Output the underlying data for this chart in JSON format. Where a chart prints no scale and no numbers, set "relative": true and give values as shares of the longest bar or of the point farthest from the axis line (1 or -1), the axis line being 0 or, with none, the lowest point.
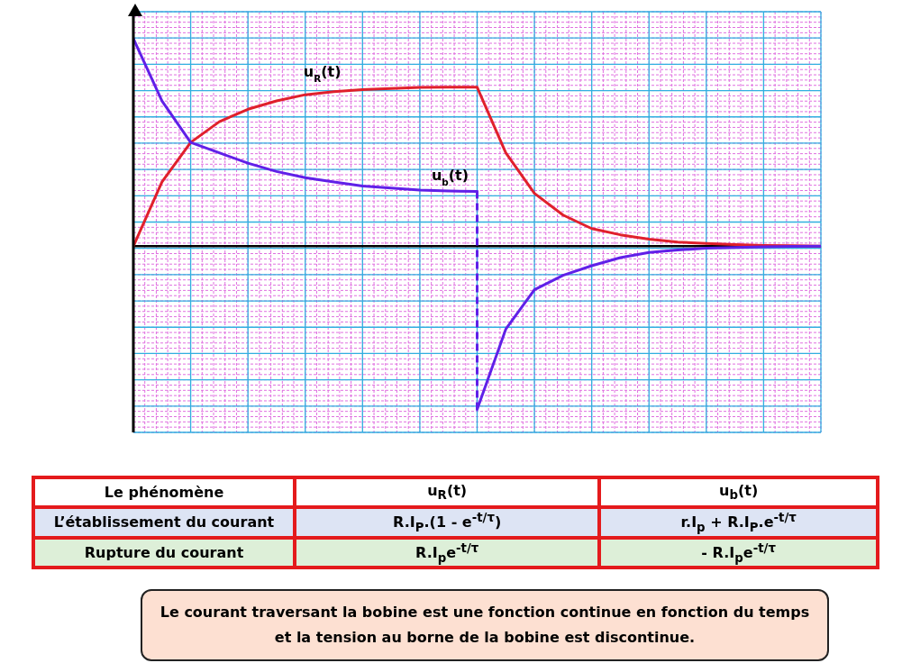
{
  "chart_data": {
    "type": "line",
    "relative": true,
    "grid": true,
    "marker": "none",
    "categories": [
      null,
      null,
      null,
      null,
      null,
      null,
      null,
      null,
      null,
      null,
      null,
      null,
      null,
      null,
      null,
      null,
      null,
      null,
      null,
      null,
      null,
      null,
      null,
      null,
      null
    ],
    "series": [
      {
        "name": "u$_{R}$(t)",
        "color": "#e0202c",
        "values": [
          0,
          0.31,
          0.5,
          0.6,
          0.66,
          0.7,
          0.73,
          0.745,
          0.755,
          0.76,
          0.765,
          0.766,
          0.766,
          0.45,
          0.255,
          0.15,
          0.085,
          0.055,
          0.034,
          0.02,
          0.013,
          0.008,
          0.004,
          0.002,
          0
        ]
      },
      {
        "name": "u$_{b}$(t)",
        "color": "#6020e8",
        "values": [
          1,
          0.7,
          0.5,
          0.45,
          0.4,
          0.36,
          0.33,
          0.31,
          0.29,
          0.28,
          0.27,
          0.266,
          0.264,
          null,
          null,
          null,
          null,
          null,
          null,
          null,
          null,
          null,
          null,
          null,
          null
        ]
      },
      {
        "color": "#6020e8",
        "values": [
          null,
          null,
          null,
          null,
          null,
          null,
          null,
          null,
          null,
          null,
          null,
          null,
          -0.787,
          -0.4,
          -0.21,
          -0.14,
          -0.094,
          -0.055,
          -0.03,
          -0.018,
          -0.01,
          -0.006,
          -0.003,
          -0.001,
          0
        ]
      }
    ],
    "annotations": [
      "Le phénomène",
      "u$_{R}$(t)",
      "u$_{b}$(t)",
      "L’établissement du courant",
      "R.I$_{P}$.(1 - e$^{-t/τ}$)",
      "r.I$_{p}$ + R.I$_{P}$.e$^{-t/τ}$",
      "Rupture du courant",
      "R.I$_{p}$e$^{-t/τ}$",
      "- R.I$_{p}$e$^{-t/τ}$",
      "Le courant traversant la bobine est une fonction continue en fonction du temps et la tension au borne de la bobine est discontinue."
    ]
  }
}
